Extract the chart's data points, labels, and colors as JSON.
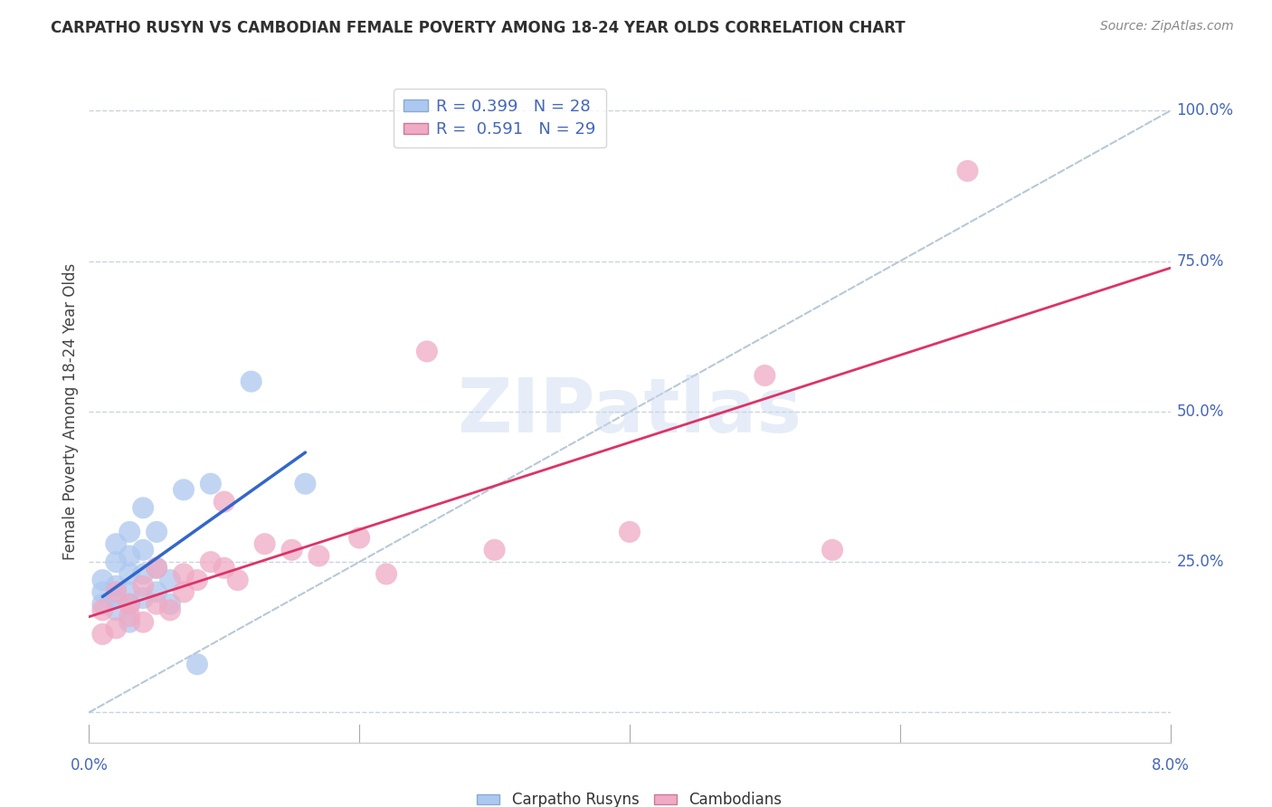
{
  "title": "CARPATHO RUSYN VS CAMBODIAN FEMALE POVERTY AMONG 18-24 YEAR OLDS CORRELATION CHART",
  "source": "Source: ZipAtlas.com",
  "ylabel": "Female Poverty Among 18-24 Year Olds",
  "blue_color": "#adc8f0",
  "pink_color": "#f0aac4",
  "blue_line_color": "#3366cc",
  "pink_line_color": "#dd3366",
  "diag_line_color": "#b8c8d8",
  "grid_color": "#c8d4e0",
  "axis_label_color": "#4466bb",
  "watermark": "ZIPatlas",
  "xlim": [
    0.0,
    0.08
  ],
  "ylim": [
    -0.05,
    1.05
  ],
  "ytick_positions": [
    0.0,
    0.25,
    0.5,
    0.75,
    1.0
  ],
  "ytick_labels": [
    "",
    "25.0%",
    "50.0%",
    "75.0%",
    "100.0%"
  ],
  "xtick_positions": [
    0.0,
    0.02,
    0.04,
    0.06,
    0.08
  ],
  "carpatho_x": [
    0.001,
    0.001,
    0.001,
    0.002,
    0.002,
    0.002,
    0.002,
    0.002,
    0.003,
    0.003,
    0.003,
    0.003,
    0.003,
    0.003,
    0.004,
    0.004,
    0.004,
    0.004,
    0.005,
    0.005,
    0.005,
    0.006,
    0.006,
    0.007,
    0.008,
    0.009,
    0.012,
    0.016
  ],
  "carpatho_y": [
    0.18,
    0.2,
    0.22,
    0.17,
    0.19,
    0.21,
    0.25,
    0.28,
    0.15,
    0.18,
    0.2,
    0.23,
    0.26,
    0.3,
    0.19,
    0.23,
    0.27,
    0.34,
    0.2,
    0.24,
    0.3,
    0.18,
    0.22,
    0.37,
    0.08,
    0.38,
    0.55,
    0.38
  ],
  "cambodian_x": [
    0.001,
    0.001,
    0.002,
    0.002,
    0.003,
    0.003,
    0.004,
    0.004,
    0.005,
    0.005,
    0.006,
    0.007,
    0.007,
    0.008,
    0.009,
    0.01,
    0.01,
    0.011,
    0.013,
    0.015,
    0.017,
    0.02,
    0.022,
    0.025,
    0.03,
    0.04,
    0.05,
    0.055,
    0.065
  ],
  "cambodian_y": [
    0.13,
    0.17,
    0.14,
    0.2,
    0.16,
    0.18,
    0.15,
    0.21,
    0.18,
    0.24,
    0.17,
    0.2,
    0.23,
    0.22,
    0.25,
    0.24,
    0.35,
    0.22,
    0.28,
    0.27,
    0.26,
    0.29,
    0.23,
    0.6,
    0.27,
    0.3,
    0.56,
    0.27,
    0.9
  ],
  "legend1_text": "R = 0.399   N = 28",
  "legend2_text": "R =  0.591   N = 29"
}
